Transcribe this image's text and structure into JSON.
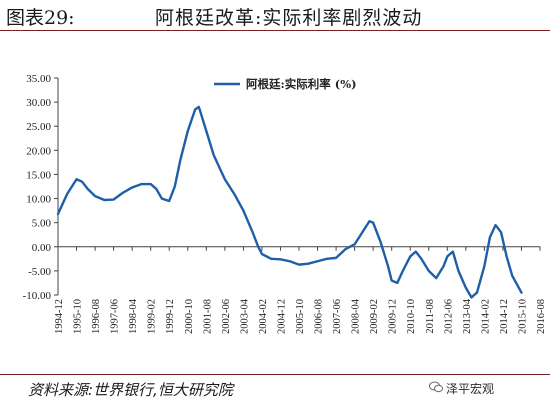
{
  "header": {
    "label": "图表29:",
    "title": "阿根廷改革:实际利率剧烈波动"
  },
  "footer": {
    "source": "资料来源:世界银行,恒大研究院",
    "watermark": "泽平宏观",
    "watermark_icon": "wechat-icon"
  },
  "colors": {
    "line": "#1f5fa8",
    "rule": "#7f1f1f"
  },
  "chart_data": {
    "type": "line",
    "title": "",
    "xlabel": "",
    "ylabel": "",
    "ylim": [
      -10,
      35
    ],
    "yticks": [
      "35.00",
      "30.00",
      "25.00",
      "20.00",
      "15.00",
      "10.00",
      "5.00",
      "0.00",
      "-5.00",
      "-10.00"
    ],
    "grid": false,
    "legend": "top-center",
    "categories": [
      "1994-12",
      "1995-10",
      "1996-08",
      "1997-06",
      "1998-04",
      "1999-02",
      "1999-12",
      "2000-10",
      "2001-08",
      "2002-06",
      "2003-04",
      "2004-02",
      "2004-12",
      "2005-10",
      "2006-08",
      "2007-06",
      "2008-04",
      "2009-02",
      "2009-12",
      "2010-10",
      "2011-08",
      "2012-06",
      "2013-04",
      "2014-02",
      "2014-12",
      "2015-10",
      "2016-08"
    ],
    "series": [
      {
        "name": "阿根廷:实际利率 (%)",
        "points": [
          [
            0,
            6.8
          ],
          [
            0.5,
            11.0
          ],
          [
            1,
            14.0
          ],
          [
            1.3,
            13.5
          ],
          [
            1.6,
            12.0
          ],
          [
            2,
            10.5
          ],
          [
            2.5,
            9.7
          ],
          [
            3,
            9.8
          ],
          [
            3.5,
            11.2
          ],
          [
            4,
            12.3
          ],
          [
            4.5,
            13.0
          ],
          [
            5,
            13.0
          ],
          [
            5.3,
            12.0
          ],
          [
            5.6,
            10.0
          ],
          [
            6,
            9.5
          ],
          [
            6.3,
            12.5
          ],
          [
            6.6,
            18.0
          ],
          [
            7,
            24.0
          ],
          [
            7.4,
            28.5
          ],
          [
            7.6,
            29.0
          ],
          [
            8,
            24.0
          ],
          [
            8.4,
            19.0
          ],
          [
            8.7,
            16.5
          ],
          [
            9,
            14.0
          ],
          [
            9.5,
            11.0
          ],
          [
            10,
            7.5
          ],
          [
            10.5,
            3.0
          ],
          [
            10.8,
            0.0
          ],
          [
            11,
            -1.5
          ],
          [
            11.5,
            -2.5
          ],
          [
            12,
            -2.6
          ],
          [
            12.5,
            -3.0
          ],
          [
            13,
            -3.7
          ],
          [
            13.5,
            -3.5
          ],
          [
            14,
            -3.0
          ],
          [
            14.5,
            -2.5
          ],
          [
            15,
            -2.3
          ],
          [
            15.5,
            -0.5
          ],
          [
            16,
            0.5
          ],
          [
            16.5,
            3.5
          ],
          [
            16.8,
            5.3
          ],
          [
            17,
            5.0
          ],
          [
            17.4,
            1.0
          ],
          [
            17.8,
            -4.0
          ],
          [
            18,
            -7.0
          ],
          [
            18.3,
            -7.5
          ],
          [
            18.6,
            -5.0
          ],
          [
            19,
            -2.0
          ],
          [
            19.3,
            -1.0
          ],
          [
            19.6,
            -2.5
          ],
          [
            20,
            -5.0
          ],
          [
            20.4,
            -6.5
          ],
          [
            20.8,
            -4.0
          ],
          [
            21,
            -2.0
          ],
          [
            21.3,
            -1.0
          ],
          [
            21.6,
            -5.0
          ],
          [
            22,
            -8.5
          ],
          [
            22.3,
            -10.5
          ],
          [
            22.6,
            -9.5
          ],
          [
            23,
            -4.0
          ],
          [
            23.3,
            2.0
          ],
          [
            23.6,
            4.5
          ],
          [
            23.9,
            3.0
          ],
          [
            24.2,
            -2.0
          ],
          [
            24.5,
            -6.0
          ],
          [
            25,
            -9.5
          ]
        ]
      }
    ]
  }
}
